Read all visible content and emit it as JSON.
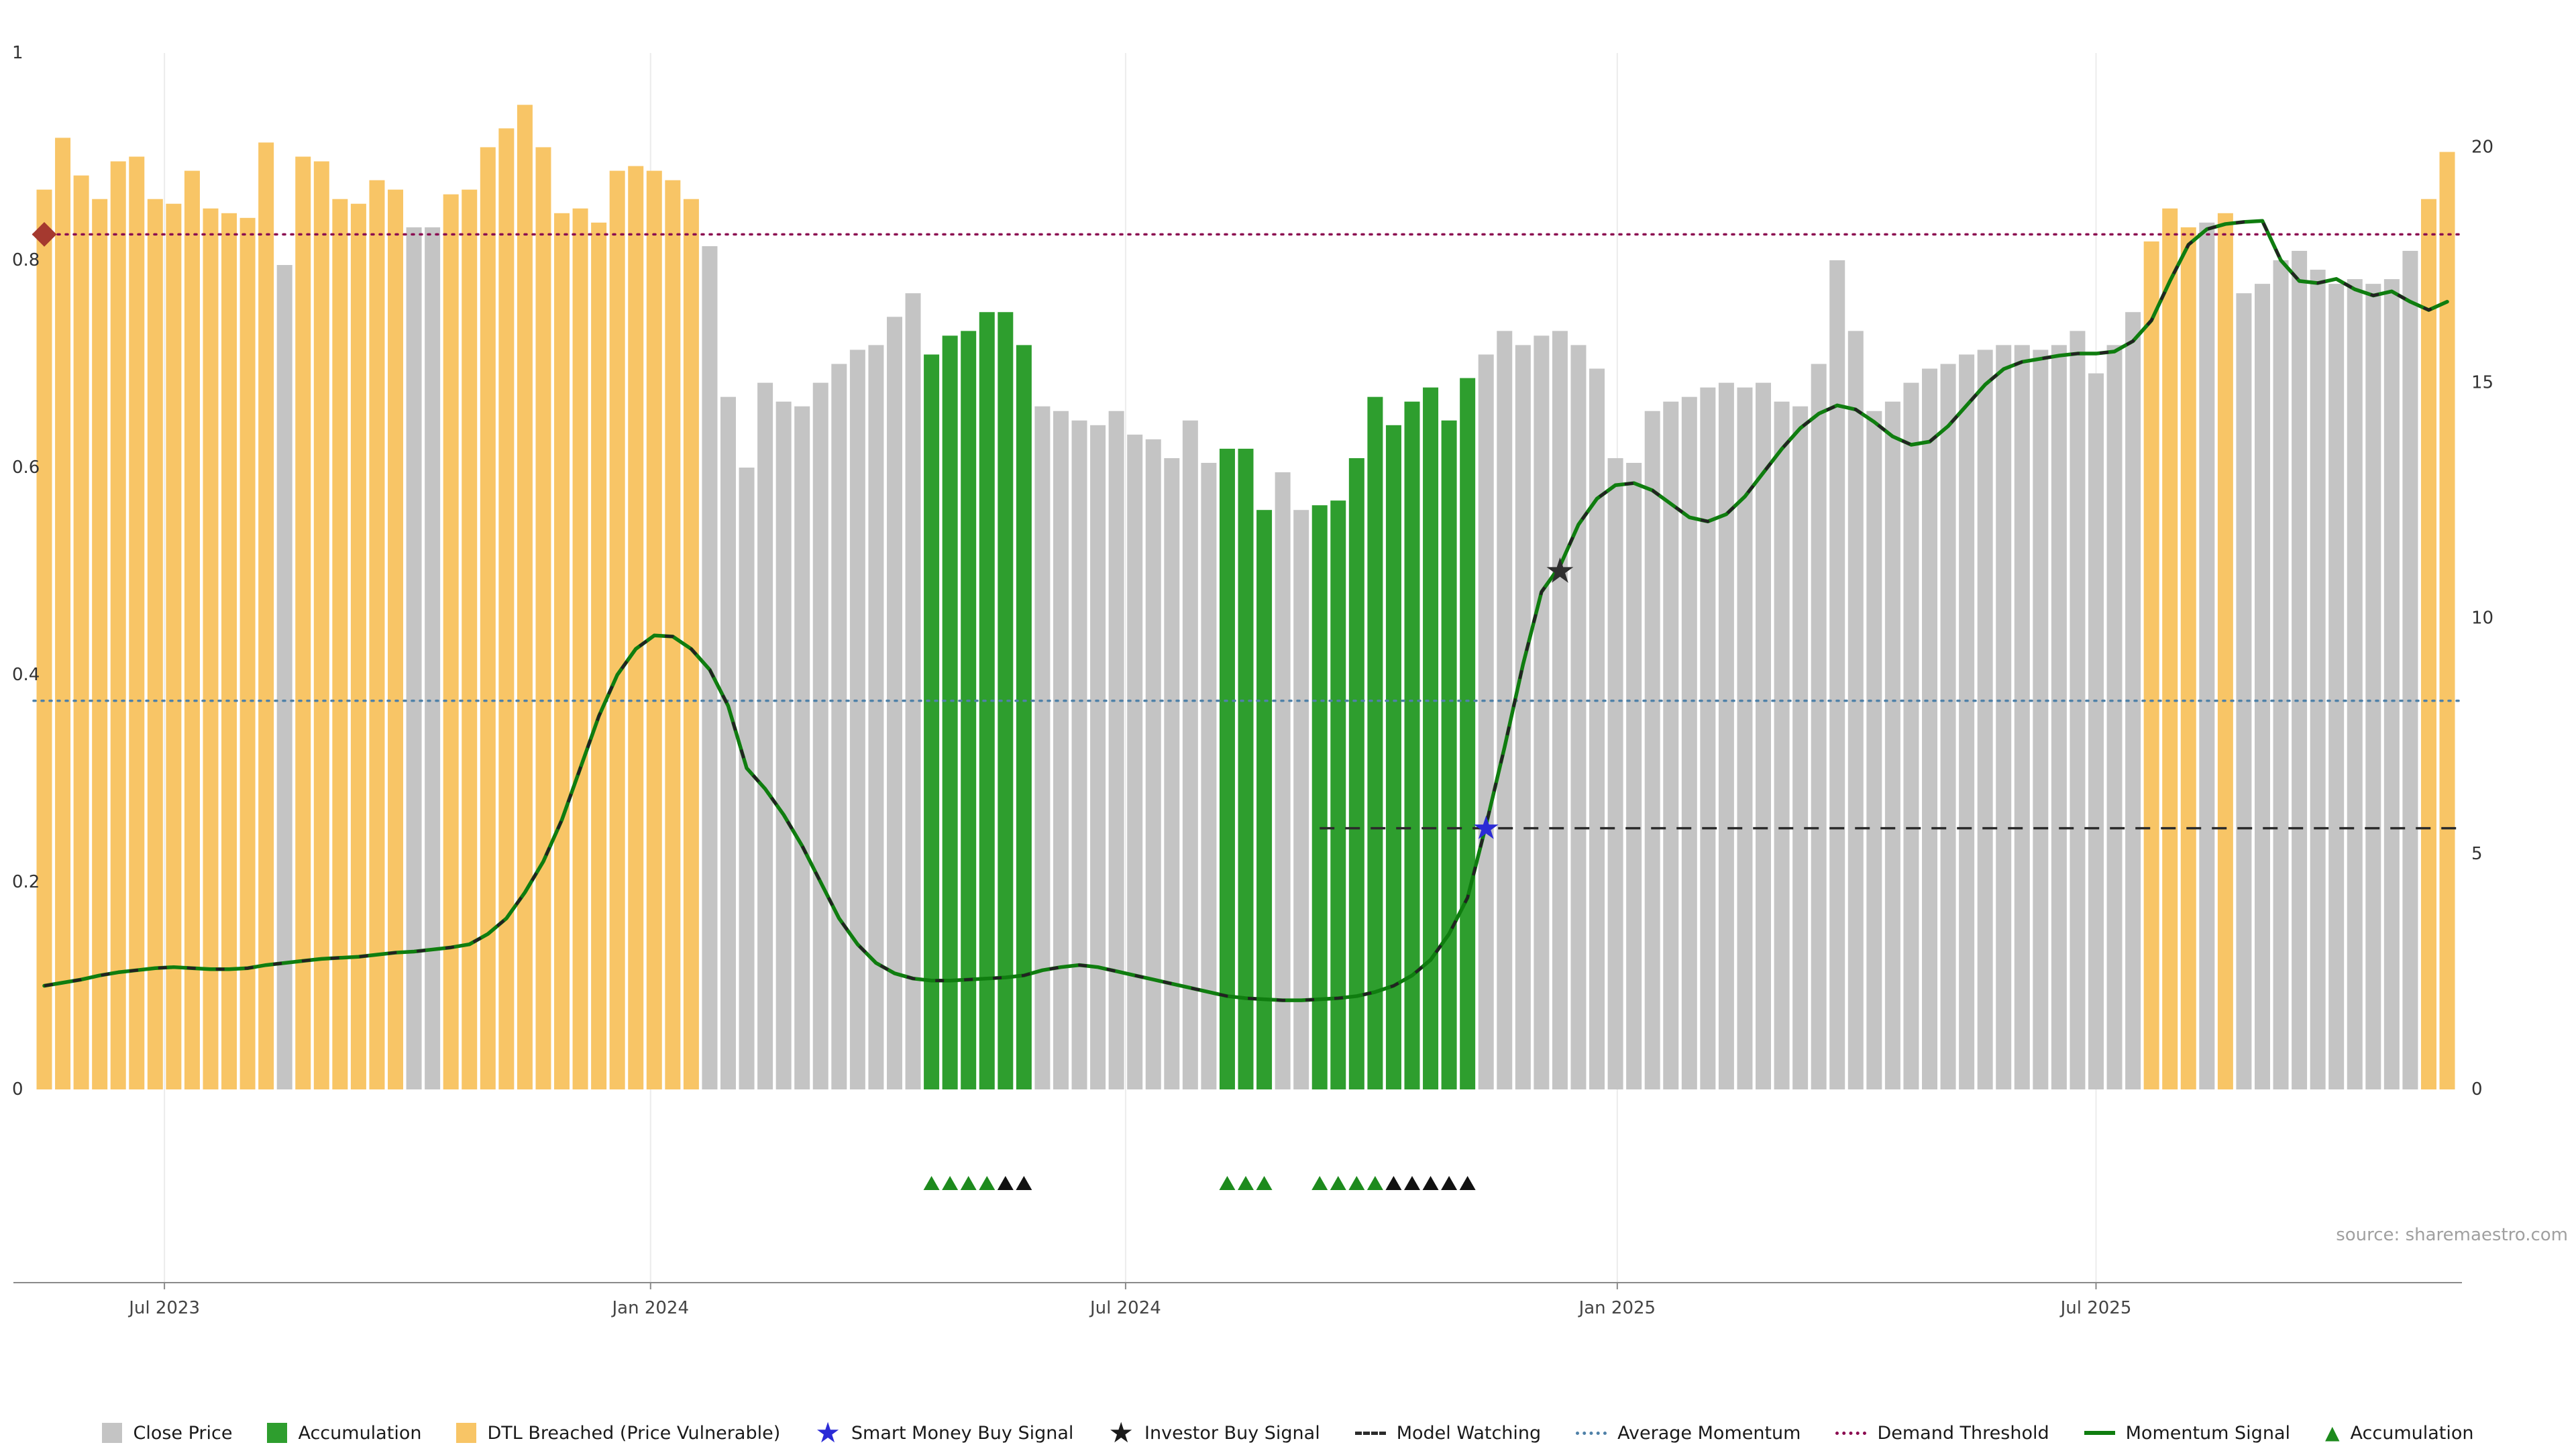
{
  "page": {
    "source_note": "source: sharemaestro.com"
  },
  "chart_data": {
    "type": "bar",
    "title": "",
    "x_axis": {
      "tick_labels": [
        "Jul 2023",
        "Jan 2024",
        "Jul 2024",
        "Jan 2025",
        "Jul 2025"
      ],
      "tick_indices": [
        6.5,
        32.8,
        58.5,
        85.1,
        111.0
      ]
    },
    "y_axis_left": {
      "label": "",
      "range": [
        0,
        1
      ],
      "ticks": [
        0,
        0.2,
        0.4,
        0.6,
        0.8,
        1
      ]
    },
    "y_axis_right": {
      "label": "",
      "range": [
        0,
        20
      ],
      "ticks": [
        0,
        5,
        10,
        15,
        20
      ],
      "top_value": 22
    },
    "bars": {
      "close_price": [
        19.1,
        20.2,
        19.4,
        18.9,
        19.7,
        19.8,
        18.9,
        18.8,
        19.5,
        18.7,
        18.6,
        18.5,
        20.1,
        17.5,
        19.8,
        19.7,
        18.9,
        18.8,
        19.3,
        19.1,
        18.3,
        18.3,
        19.0,
        19.1,
        20.0,
        20.4,
        20.9,
        20.0,
        18.6,
        18.7,
        18.4,
        19.5,
        19.6,
        19.5,
        19.3,
        18.9,
        17.9,
        14.7,
        13.2,
        15.0,
        14.6,
        14.5,
        15.0,
        15.4,
        15.7,
        15.8,
        16.4,
        16.9,
        15.6,
        16.0,
        16.1,
        16.5,
        16.5,
        15.8,
        14.5,
        14.4,
        14.2,
        14.1,
        14.4,
        13.9,
        13.8,
        13.4,
        14.2,
        13.3,
        13.6,
        13.6,
        12.3,
        13.1,
        12.3,
        12.4,
        12.5,
        13.4,
        14.7,
        14.1,
        14.6,
        14.9,
        14.2,
        15.1,
        15.6,
        16.1,
        15.8,
        16.0,
        16.1,
        15.8,
        15.3,
        13.4,
        13.3,
        14.4,
        14.6,
        14.7,
        14.9,
        15.0,
        14.9,
        15.0,
        14.6,
        14.5,
        15.4,
        17.6,
        16.1,
        14.4,
        14.6,
        15.0,
        15.3,
        15.4,
        15.6,
        15.7,
        15.8,
        15.8,
        15.7,
        15.8,
        16.1,
        15.2,
        15.8,
        16.5,
        18.0,
        18.7,
        18.3,
        18.4,
        18.6,
        16.9,
        17.1,
        17.6,
        17.8,
        17.4,
        17.1,
        17.2,
        17.1,
        17.2,
        17.8,
        18.9,
        19.9
      ],
      "state": [
        "dtl",
        "dtl",
        "dtl",
        "dtl",
        "dtl",
        "dtl",
        "dtl",
        "dtl",
        "dtl",
        "dtl",
        "dtl",
        "dtl",
        "dtl",
        "close",
        "dtl",
        "dtl",
        "dtl",
        "dtl",
        "dtl",
        "dtl",
        "close",
        "close",
        "dtl",
        "dtl",
        "dtl",
        "dtl",
        "dtl",
        "dtl",
        "dtl",
        "dtl",
        "dtl",
        "dtl",
        "dtl",
        "dtl",
        "dtl",
        "dtl",
        "close",
        "close",
        "close",
        "close",
        "close",
        "close",
        "close",
        "close",
        "close",
        "close",
        "close",
        "close",
        "accum",
        "accum",
        "accum",
        "accum",
        "accum",
        "accum",
        "close",
        "close",
        "close",
        "close",
        "close",
        "close",
        "close",
        "close",
        "close",
        "close",
        "accum",
        "accum",
        "accum",
        "close",
        "close",
        "accum",
        "accum",
        "accum",
        "accum",
        "accum",
        "accum",
        "accum",
        "accum",
        "accum",
        "close",
        "close",
        "close",
        "close",
        "close",
        "close",
        "close",
        "close",
        "close",
        "close",
        "close",
        "close",
        "close",
        "close",
        "close",
        "close",
        "close",
        "close",
        "close",
        "close",
        "close",
        "close",
        "close",
        "close",
        "close",
        "close",
        "close",
        "close",
        "close",
        "close",
        "close",
        "close",
        "close",
        "close",
        "close",
        "close",
        "dtl",
        "dtl",
        "dtl",
        "close",
        "dtl",
        "close",
        "close",
        "close",
        "close",
        "close",
        "close",
        "close",
        "close",
        "close",
        "close",
        "dtl",
        "dtl"
      ]
    },
    "momentum_signal": [
      0.1,
      0.103,
      0.106,
      0.11,
      0.113,
      0.115,
      0.117,
      0.118,
      0.117,
      0.116,
      0.116,
      0.117,
      0.12,
      0.122,
      0.124,
      0.126,
      0.127,
      0.128,
      0.13,
      0.132,
      0.133,
      0.135,
      0.137,
      0.14,
      0.15,
      0.165,
      0.19,
      0.22,
      0.26,
      0.31,
      0.36,
      0.4,
      0.425,
      0.438,
      0.437,
      0.425,
      0.405,
      0.37,
      0.31,
      0.29,
      0.265,
      0.235,
      0.2,
      0.165,
      0.14,
      0.122,
      0.112,
      0.107,
      0.105,
      0.105,
      0.106,
      0.107,
      0.108,
      0.11,
      0.115,
      0.118,
      0.12,
      0.118,
      0.114,
      0.11,
      0.106,
      0.102,
      0.098,
      0.094,
      0.09,
      0.088,
      0.087,
      0.086,
      0.086,
      0.087,
      0.088,
      0.09,
      0.094,
      0.1,
      0.11,
      0.125,
      0.15,
      0.185,
      0.255,
      0.33,
      0.41,
      0.48,
      0.505,
      0.545,
      0.57,
      0.583,
      0.585,
      0.578,
      0.565,
      0.552,
      0.548,
      0.555,
      0.572,
      0.595,
      0.618,
      0.638,
      0.652,
      0.66,
      0.656,
      0.644,
      0.63,
      0.622,
      0.625,
      0.64,
      0.66,
      0.68,
      0.695,
      0.702,
      0.705,
      0.708,
      0.71,
      0.71,
      0.712,
      0.722,
      0.742,
      0.78,
      0.815,
      0.83,
      0.835,
      0.837,
      0.838,
      0.8,
      0.78,
      0.778,
      0.782,
      0.772,
      0.766,
      0.77,
      0.76,
      0.752,
      0.76
    ],
    "lines": {
      "demand_threshold": 0.825,
      "average_momentum": 0.375,
      "model_watching": {
        "value": 0.252,
        "start_index": 69
      }
    },
    "markers": {
      "smart_money_buy": {
        "index": 78,
        "value": 0.252
      },
      "investor_buy": {
        "index": 82,
        "value": 0.5
      },
      "demand_diamond": {
        "index": 0,
        "value": 0.825
      },
      "accumulation_triangles": [
        48,
        49,
        50,
        51,
        64,
        65,
        66,
        69,
        70,
        71,
        72
      ],
      "black_triangles": [
        52,
        53,
        73,
        74,
        75,
        76,
        77
      ]
    },
    "colors": {
      "close": "#c4c4c4",
      "accum": "#2e9e2e",
      "dtl": "#f8c566",
      "momentum": "#0f7d0f",
      "momentum_dash": "#222222",
      "demand": "#8b0a50",
      "avg_momentum": "#4f81a8",
      "model_watching": "#2b2b2b",
      "smart_money": "#2b2bd6",
      "investor": "#2f2f2f",
      "diamond": "#a5392f",
      "triangle_green": "#1d8a1d",
      "triangle_black": "#111111"
    }
  },
  "legend": {
    "items": [
      {
        "label": "Close Price",
        "type": "square",
        "color": "#c4c4c4"
      },
      {
        "label": "Accumulation",
        "type": "square",
        "color": "#2e9e2e"
      },
      {
        "label": "DTL Breached (Price Vulnerable)",
        "type": "square",
        "color": "#f8c566"
      },
      {
        "label": "Smart Money Buy Signal",
        "type": "star",
        "color": "#2b2bd6"
      },
      {
        "label": "Investor Buy Signal",
        "type": "star",
        "color": "#1a1a1a"
      },
      {
        "label": "Model Watching",
        "type": "dashed-line",
        "color": "#2b2b2b"
      },
      {
        "label": "Average Momentum",
        "type": "dotted-line",
        "color": "#4f81a8"
      },
      {
        "label": "Demand Threshold",
        "type": "dotted-line",
        "color": "#8b0a50"
      },
      {
        "label": "Momentum Signal",
        "type": "solid-line",
        "color": "#0f7d0f"
      },
      {
        "label": "Accumulation",
        "type": "triangle",
        "color": "#1d8a1d"
      }
    ]
  }
}
